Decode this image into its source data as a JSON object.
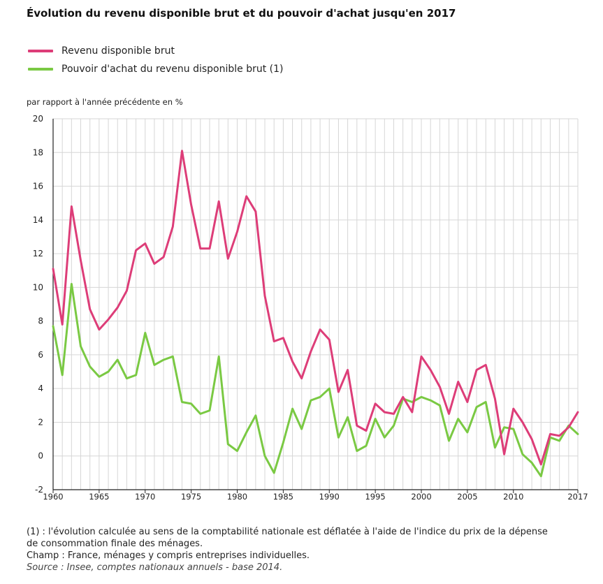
{
  "colors": {
    "series1": "#dd3d78",
    "series2": "#7ac943",
    "grid": "#d6d6d6",
    "axis": "#222222"
  },
  "header": {
    "title": "Évolution du revenu disponible brut et du pouvoir d'achat jusqu'en 2017"
  },
  "legend": {
    "items": [
      "Revenu disponible brut",
      "Pouvoir d'achat du revenu disponible brut (1)"
    ]
  },
  "notes": {
    "note1": "(1) : l'évolution calculée au sens de la comptabilité nationale est déflatée à l'aide de l'indice du prix de la dépense de consommation finale des ménages.",
    "champ": "Champ : France, ménages y compris entreprises individuelles.",
    "source": "Source : Insee, comptes nationaux annuels - base 2014."
  },
  "chart_data": {
    "type": "line",
    "title": "Évolution du revenu disponible brut et du pouvoir d'achat jusqu'en 2017",
    "ylabel": "par rapport à l'année précédente en %",
    "xlabel": "",
    "xlim": [
      1960,
      2017
    ],
    "ylim": [
      -2,
      20
    ],
    "yticks": [
      -2,
      0,
      2,
      4,
      6,
      8,
      10,
      12,
      14,
      16,
      18,
      20
    ],
    "xticks": [
      1960,
      1965,
      1970,
      1975,
      1980,
      1985,
      1990,
      1995,
      2000,
      2005,
      2010,
      2017
    ],
    "grid": true,
    "legend_position": "top-left",
    "x": [
      1960,
      1961,
      1962,
      1963,
      1964,
      1965,
      1966,
      1967,
      1968,
      1969,
      1970,
      1971,
      1972,
      1973,
      1974,
      1975,
      1976,
      1977,
      1978,
      1979,
      1980,
      1981,
      1982,
      1983,
      1984,
      1985,
      1986,
      1987,
      1988,
      1989,
      1990,
      1991,
      1992,
      1993,
      1994,
      1995,
      1996,
      1997,
      1998,
      1999,
      2000,
      2001,
      2002,
      2003,
      2004,
      2005,
      2006,
      2007,
      2008,
      2009,
      2010,
      2011,
      2012,
      2013,
      2014,
      2015,
      2016,
      2017
    ],
    "series": [
      {
        "name": "Revenu disponible brut",
        "values": [
          11.1,
          7.8,
          14.8,
          11.6,
          8.7,
          7.5,
          8.1,
          8.8,
          9.8,
          12.2,
          12.6,
          11.4,
          11.8,
          13.6,
          18.1,
          14.9,
          12.3,
          12.3,
          15.1,
          11.7,
          13.3,
          15.4,
          14.5,
          9.5,
          6.8,
          7.0,
          5.6,
          4.6,
          6.2,
          7.5,
          6.9,
          3.8,
          5.1,
          1.8,
          1.5,
          3.1,
          2.6,
          2.5,
          3.5,
          2.6,
          5.9,
          5.1,
          4.1,
          2.5,
          4.4,
          3.2,
          5.1,
          5.4,
          3.4,
          0.1,
          2.8,
          2.0,
          1.0,
          -0.5,
          1.3,
          1.2,
          1.7,
          2.6
        ]
      },
      {
        "name": "Pouvoir d'achat du revenu disponible brut (1)",
        "values": [
          7.7,
          4.8,
          10.2,
          6.5,
          5.3,
          4.7,
          5.0,
          5.7,
          4.6,
          4.8,
          7.3,
          5.4,
          5.7,
          5.9,
          3.2,
          3.1,
          2.5,
          2.7,
          5.9,
          0.7,
          0.3,
          1.4,
          2.4,
          0.0,
          -1.0,
          0.8,
          2.8,
          1.6,
          3.3,
          3.5,
          4.0,
          1.1,
          2.3,
          0.3,
          0.6,
          2.2,
          1.1,
          1.8,
          3.4,
          3.2,
          3.5,
          3.3,
          3.0,
          0.9,
          2.2,
          1.4,
          2.9,
          3.2,
          0.5,
          1.7,
          1.6,
          0.1,
          -0.4,
          -1.2,
          1.1,
          0.9,
          1.8,
          1.3
        ]
      }
    ]
  }
}
